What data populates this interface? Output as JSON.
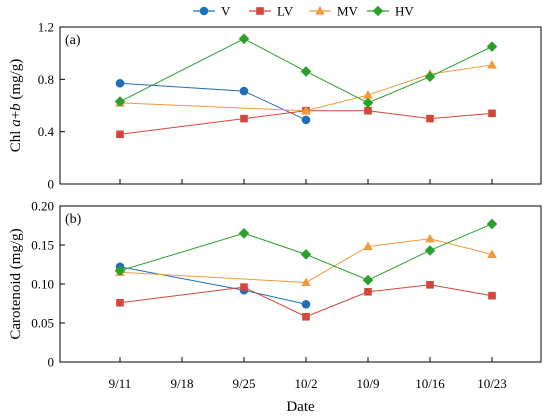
{
  "chart_data": [
    {
      "type": "line",
      "panel_label": "(a)",
      "ylabel_parts": [
        "Chl ",
        "a",
        "+",
        "b",
        " (mg/g)"
      ],
      "ylim": [
        0,
        1.2
      ],
      "yticks": [
        0,
        0.4,
        0.8,
        1.2
      ],
      "ytick_labels": [
        "0",
        "0.4",
        "0.8",
        "1.2"
      ],
      "grid": false,
      "series": [
        {
          "name": "V",
          "color": "#1f6fb4",
          "marker": "circle",
          "x": [
            "9/11",
            "9/25",
            "10/2"
          ],
          "values": [
            0.77,
            0.71,
            0.49
          ]
        },
        {
          "name": "LV",
          "color": "#d2473a",
          "marker": "square",
          "x": [
            "9/11",
            "9/25",
            "10/2",
            "10/9",
            "10/16",
            "10/23"
          ],
          "values": [
            0.38,
            0.5,
            0.56,
            0.56,
            0.5,
            0.54
          ]
        },
        {
          "name": "MV",
          "color": "#f19a3e",
          "marker": "triangle",
          "x": [
            "9/11",
            "10/2",
            "10/9",
            "10/16",
            "10/23"
          ],
          "values": [
            0.62,
            0.56,
            0.68,
            0.84,
            0.91
          ]
        },
        {
          "name": "HV",
          "color": "#2ca02c",
          "marker": "diamond",
          "x": [
            "9/11",
            "9/25",
            "10/2",
            "10/9",
            "10/16",
            "10/23"
          ],
          "values": [
            0.63,
            1.11,
            0.86,
            0.62,
            0.82,
            1.05
          ]
        }
      ]
    },
    {
      "type": "line",
      "panel_label": "(b)",
      "ylabel": "Carotenoid (mg/g)",
      "ylim": [
        0,
        0.2
      ],
      "yticks": [
        0,
        0.05,
        0.1,
        0.15,
        0.2
      ],
      "ytick_labels": [
        "0",
        "0.05",
        "0.10",
        "0.15",
        "0.20"
      ],
      "xlabel": "Date",
      "x_categories": [
        "9/11",
        "9/18",
        "9/25",
        "10/2",
        "10/9",
        "10/16",
        "10/23"
      ],
      "grid": false,
      "series": [
        {
          "name": "V",
          "color": "#1f6fb4",
          "marker": "circle",
          "x": [
            "9/11",
            "9/25",
            "10/2"
          ],
          "values": [
            0.122,
            0.092,
            0.074
          ]
        },
        {
          "name": "LV",
          "color": "#d2473a",
          "marker": "square",
          "x": [
            "9/11",
            "9/25",
            "10/2",
            "10/9",
            "10/16",
            "10/23"
          ],
          "values": [
            0.076,
            0.096,
            0.058,
            0.09,
            0.099,
            0.085
          ]
        },
        {
          "name": "MV",
          "color": "#f19a3e",
          "marker": "triangle",
          "x": [
            "9/11",
            "10/2",
            "10/9",
            "10/16",
            "10/23"
          ],
          "values": [
            0.115,
            0.102,
            0.148,
            0.158,
            0.138
          ]
        },
        {
          "name": "HV",
          "color": "#2ca02c",
          "marker": "diamond",
          "x": [
            "9/11",
            "9/25",
            "10/2",
            "10/9",
            "10/16",
            "10/23"
          ],
          "values": [
            0.117,
            0.165,
            0.138,
            0.105,
            0.143,
            0.177
          ]
        }
      ]
    }
  ],
  "legend": {
    "placement": "top-center",
    "items": [
      {
        "name": "V",
        "color": "#1f6fb4",
        "marker": "circle"
      },
      {
        "name": "LV",
        "color": "#d2473a",
        "marker": "square"
      },
      {
        "name": "MV",
        "color": "#f19a3e",
        "marker": "triangle"
      },
      {
        "name": "HV",
        "color": "#2ca02c",
        "marker": "diamond"
      }
    ]
  }
}
